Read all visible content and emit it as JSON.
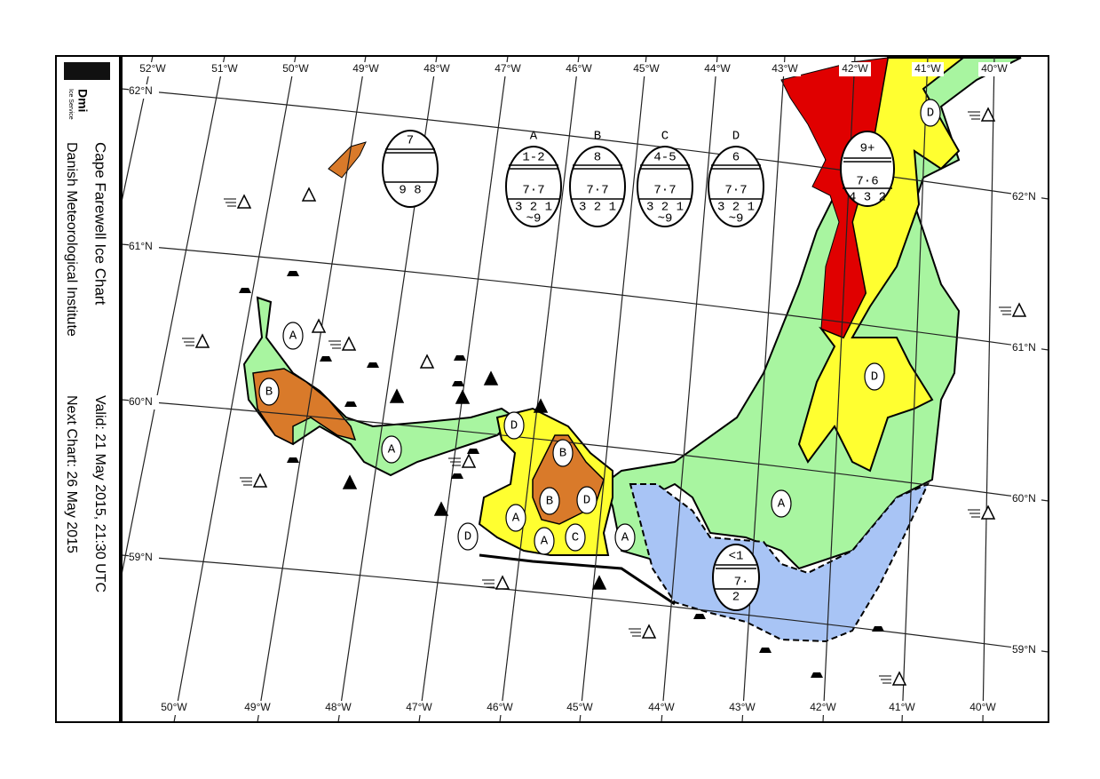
{
  "header": {
    "logo": "Dmi",
    "logo_sub": "Ice Service",
    "title": "Cape Farewell Ice Chart",
    "subtitle": "Danish Meteorological Institute",
    "valid": "Valid: 21 May 2015, 21:30 UTC",
    "next_chart": "Next Chart: 26 May 2015"
  },
  "map": {
    "top_lon_labels": [
      "52°W",
      "51°W",
      "50°W",
      "49°W",
      "48°W",
      "47°W",
      "46°W",
      "45°W",
      "44°W",
      "43°W",
      "42°W",
      "41°W",
      "40°W"
    ],
    "bottom_lon_labels": [
      "50°W",
      "49°W",
      "48°W",
      "47°W",
      "46°W",
      "45°W",
      "44°W",
      "43°W",
      "42°W",
      "41°W",
      "40°W"
    ],
    "left_lat_labels": [
      "62°N",
      "61°N",
      "60°N",
      "59°N"
    ],
    "right_lat_labels": [
      "62°N",
      "61°N",
      "60°N",
      "59°N"
    ],
    "legend_eggs": [
      {
        "id": "A",
        "total": "1-2",
        "partial": "7·7",
        "stage": "3 2 1",
        "form": "~9"
      },
      {
        "id": "B",
        "total": "8",
        "partial": "7·7",
        "stage": "3 2 1"
      },
      {
        "id": "C",
        "total": "4-5",
        "partial": "7·7",
        "stage": "3 2 1",
        "form": "~9"
      },
      {
        "id": "D",
        "total": "6",
        "partial": "7·7",
        "stage": "3 2 1",
        "form": "~9"
      }
    ],
    "map_eggs": [
      {
        "total": "7",
        "stage": "9 8"
      },
      {
        "total": "9+",
        "partial": "7·6",
        "stage": "4 3 2"
      },
      {
        "total": "<1",
        "partial": "7·",
        "stage": "2"
      }
    ],
    "region_labels": [
      "A",
      "B",
      "A",
      "D",
      "B",
      "B",
      "D",
      "A",
      "A",
      "C",
      "A",
      "D",
      "A",
      "D",
      "D"
    ]
  }
}
